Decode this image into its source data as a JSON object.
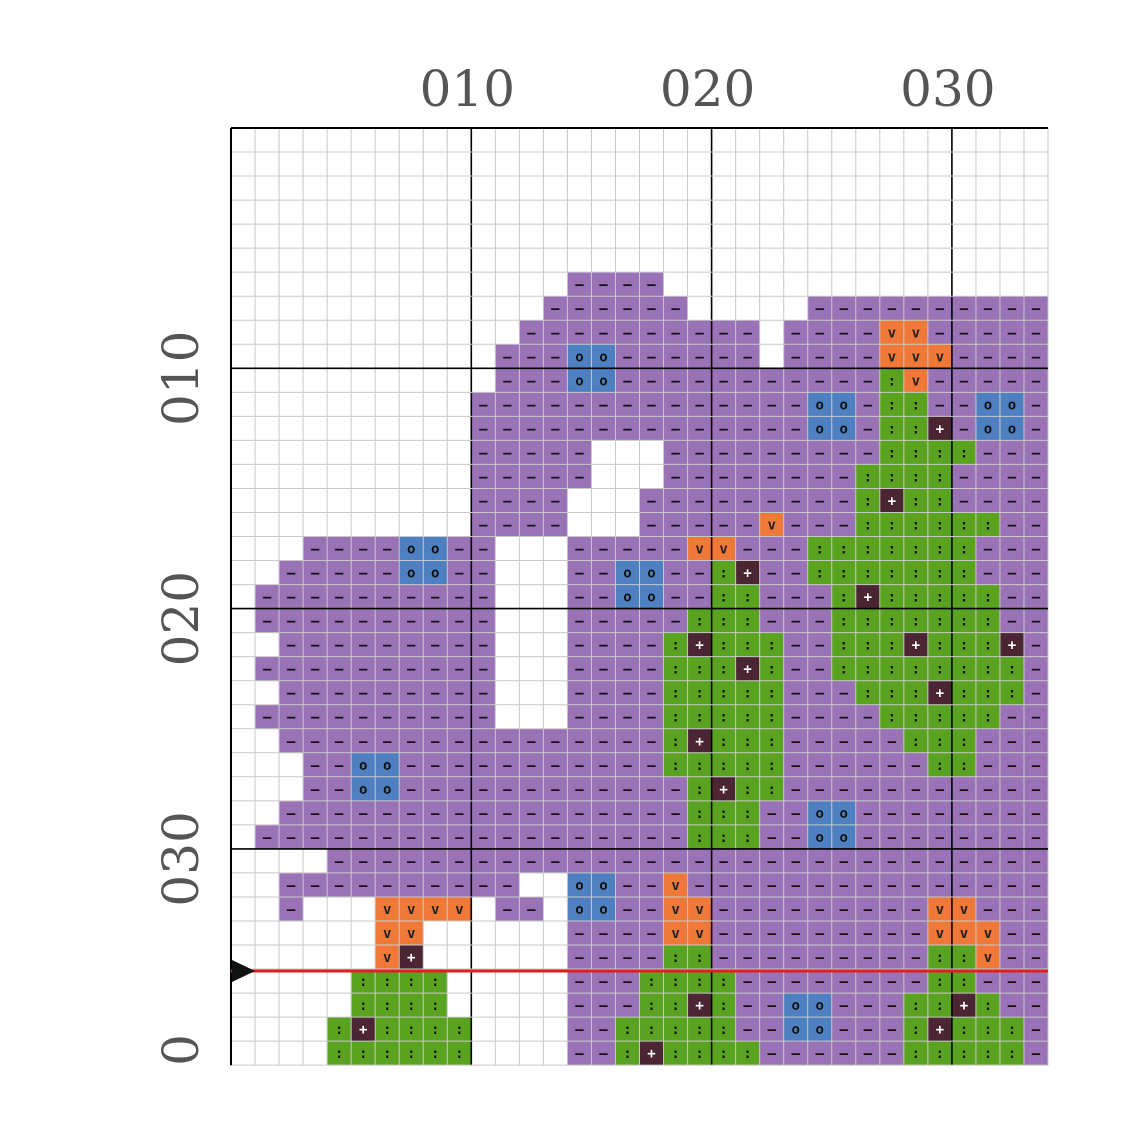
{
  "chart_title": "",
  "x_axis_labels": [
    "010",
    "020",
    "030"
  ],
  "y_axis_labels": [
    "010",
    "020",
    "030",
    "0"
  ],
  "grid": {
    "cols": 34,
    "rows": 39
  },
  "palette": {
    "P": {
      "name": "purple",
      "color": "#9a73b7",
      "symbol": "–",
      "sym_color": "#111111"
    },
    "G": {
      "name": "green",
      "color": "#5aa321",
      "symbol": ":",
      "sym_color": "#111111"
    },
    "O": {
      "name": "orange",
      "color": "#f0793a",
      "symbol": "v",
      "sym_color": "#222222"
    },
    "B": {
      "name": "blue",
      "color": "#4e7fc0",
      "symbol": "o",
      "sym_color": "#111111"
    },
    "D": {
      "name": "dark",
      "color": "#4b2533",
      "symbol": "+",
      "sym_color": "#ffffff"
    }
  },
  "pattern_rows": [
    "..................................",
    "..................................",
    "..................................",
    "..................................",
    "..................................",
    "..................................",
    "..............PPPP................",
    ".............PPPPPP.....PPPPPPPPPP",
    "............PPPPPPPPPP.PPPPOOPPPPP",
    "...........PPPBBPPPPPP.PPPPOOOPPPP",
    "...........PPPBBPPPPPPPPPPPGOPPPPP",
    "..........PPPPPPPPPPPPPPBBPGGPPBBP",
    "..........PPPPPPPPPPPPPPBBPGGDPBBP",
    "..........PPPPP...PPPPPPPPPGGGGPPP",
    "..........PPPPP...PPPPPPPPGGGGPPPP",
    "..........PPPP...PPPPPPPPPGDGGPPPP",
    "..........PPPP...PPPPPOPPPGGGGGGPP",
    "...PPPPBBPP...PPPPPOOPPPGGGGGGGPPP",
    "..PPPPPBBPP...PPBBPPGDPPGGGGGGGPPP",
    ".PPPPPPPPPP...PPBBPPGGPPPGDGGGGGPP",
    ".PPPPPPPPPP...PPPPPGGGPPPGGGGGGGPP",
    "..PPPPPPPPP...PPPPGDGGGPPGGGDGGGDP",
    ".PPPPPPPPPP...PPPPGGGDGPPGGGGGGGGP",
    "..PPPPPPPPP...PPPPGGGGGPPPGGGDGGGP",
    ".PPPPPPPPPP...PPPPGGGGGPPPPGGGGGPP",
    "..PPPPPPPPPPPPPPPPGDGGGPPPPPGGGPPP",
    "...PPBBPPPPPPPPPPPGGGGGPPPPPPGGPPP",
    "...PPBBPPPPPPPPPPPPGDGGPPPPPPPPPPP",
    "..PPPPPPPPPPPPPPPPPGGGPPBBPPPPPPPP",
    ".PPPPPPPPPPPPPPPPPPGGGPPBBPPPPPPPP",
    "....PPPPPPPPPPPPPPPPPPPPPPPPPPPPPP",
    "..PPPPPPPPPP..BBPPOPPPPPPPPPPPPPPP",
    "..P...OOOO.PP.BBPPOOPPPPPPPPPOOPPP",
    "......OO......PPPPOOPPPPPPPPPOOOPP",
    "......OD......PPPPGGPPPPPPPPPGGOPP",
    ".....GGGG.....PPPGGGGPPPPPPPPGGPPP",
    ".....GGGG.....PPPGGDGPPBBPPPGGDGPP",
    "....GDGGGG....PPGGGGGPPBBPPPGDGGGP",
    "....GGGGGG....PPGDGGGGPPPPPPGGGGGP"
  ],
  "cursor_row": 35
}
